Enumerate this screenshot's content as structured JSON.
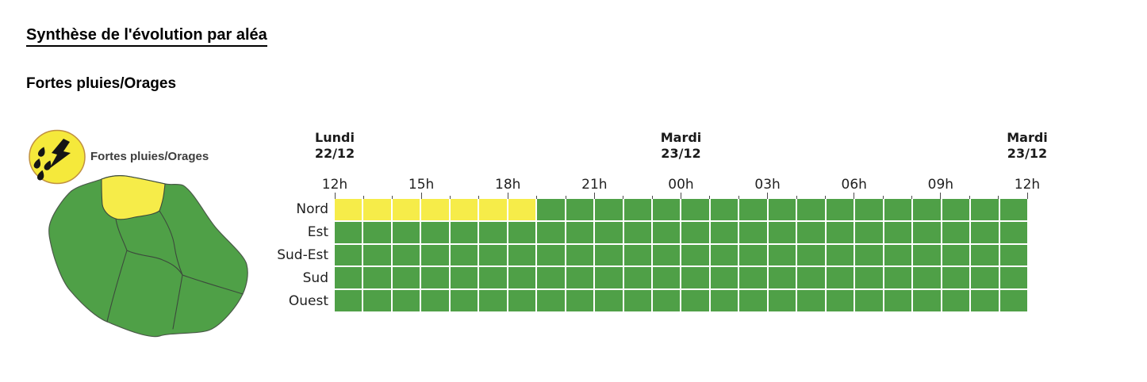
{
  "page": {
    "title": "Synthèse de l'évolution par aléa",
    "section_title": "Fortes pluies/Orages"
  },
  "legend": {
    "label": "Fortes pluies/Orages",
    "icon": "heavy-rain-thunderstorm-icon"
  },
  "colors": {
    "vigilance_yellow": "#F6EC49",
    "vigilance_green": "#4FA047",
    "icon_yellow": "#F5E93B",
    "icon_border": "#C09040",
    "icon_glyph": "#151515",
    "map_border": "#3C4A3C",
    "text": "#1F1F1F"
  },
  "map": {
    "name": "La Réunion",
    "regions": [
      {
        "name": "Nord",
        "status": "yellow"
      },
      {
        "name": "Est",
        "status": "green"
      },
      {
        "name": "Sud-Est",
        "status": "green"
      },
      {
        "name": "Sud",
        "status": "green"
      },
      {
        "name": "Ouest",
        "status": "green"
      }
    ]
  },
  "chart_data": {
    "type": "heatmap",
    "title": "Fortes pluies/Orages",
    "x_start": "Lundi 22/12 12h",
    "x_end": "Mardi 23/12 12h",
    "hours_per_cell": 1,
    "n_columns": 24,
    "x_major_ticks": [
      "12h",
      "15h",
      "18h",
      "21h",
      "00h",
      "03h",
      "06h",
      "09h",
      "12h"
    ],
    "date_markers": [
      {
        "line1": "Lundi",
        "line2": "22/12",
        "hour_index": 0
      },
      {
        "line1": "Mardi",
        "line2": "23/12",
        "hour_index": 12
      },
      {
        "line1": "Mardi",
        "line2": "23/12",
        "hour_index": 24
      }
    ],
    "cell_code_meaning": {
      "Y": "vigilance jaune",
      "G": "vigilance verte"
    },
    "rows": [
      {
        "label": "Nord",
        "cells": "YYYYYYYGGGGGGGGGGGGGGGGG"
      },
      {
        "label": "Est",
        "cells": "GGGGGGGGGGGGGGGGGGGGGGGG"
      },
      {
        "label": "Sud-Est",
        "cells": "GGGGGGGGGGGGGGGGGGGGGGGG"
      },
      {
        "label": "Sud",
        "cells": "GGGGGGGGGGGGGGGGGGGGGGGG"
      },
      {
        "label": "Ouest",
        "cells": "GGGGGGGGGGGGGGGGGGGGGGGG"
      }
    ]
  }
}
